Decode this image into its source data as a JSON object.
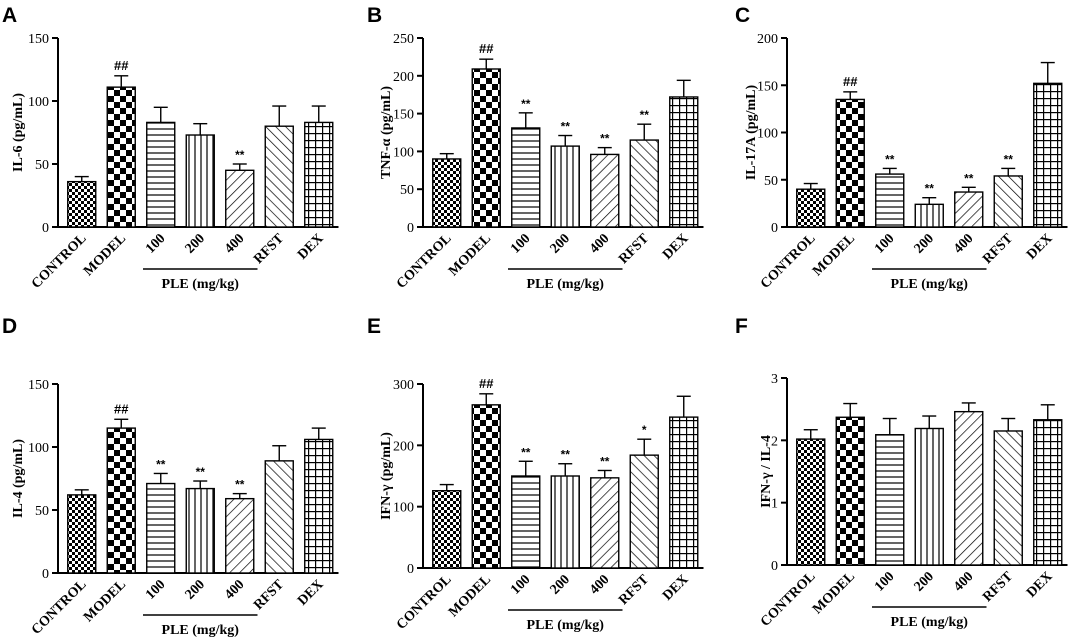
{
  "chart_data": [
    {
      "panel": "A",
      "type": "bar",
      "ylabel": "IL-6 (pg/mL)",
      "ylim": [
        0,
        150
      ],
      "yticks": [
        "0",
        "50",
        "100",
        "150"
      ],
      "categories": [
        "CONTROL",
        "MODEL",
        "100",
        "200",
        "400",
        "RFST",
        "DEX"
      ],
      "group_label": "PLE (mg/kg)",
      "values": [
        36,
        111,
        83,
        73,
        45,
        80,
        83
      ],
      "errors": [
        4,
        9,
        12,
        9,
        5,
        16,
        13
      ],
      "annotations": [
        "",
        "##",
        "",
        "",
        "**",
        "",
        ""
      ]
    },
    {
      "panel": "B",
      "type": "bar",
      "ylabel": "TNF-α (pg/mL)",
      "ylim": [
        0,
        250
      ],
      "yticks": [
        "0",
        "50",
        "100",
        "150",
        "200",
        "250"
      ],
      "categories": [
        "CONTROL",
        "MODEL",
        "100",
        "200",
        "400",
        "RFST",
        "DEX"
      ],
      "group_label": "PLE (mg/kg)",
      "values": [
        90,
        209,
        131,
        107,
        96,
        115,
        172
      ],
      "errors": [
        7,
        13,
        20,
        14,
        9,
        21,
        22
      ],
      "annotations": [
        "",
        "##",
        "**",
        "**",
        "**",
        "**",
        ""
      ]
    },
    {
      "panel": "C",
      "type": "bar",
      "ylabel": "IL-17A (pg/mL)",
      "ylim": [
        0,
        200
      ],
      "yticks": [
        "0",
        "50",
        "100",
        "150",
        "200"
      ],
      "categories": [
        "CONTROL",
        "MODEL",
        "100",
        "200",
        "400",
        "RFST",
        "DEX"
      ],
      "group_label": "PLE (mg/kg)",
      "values": [
        40,
        135,
        56,
        24,
        37,
        54,
        152
      ],
      "errors": [
        6,
        8,
        6,
        7,
        5,
        8,
        22
      ],
      "annotations": [
        "",
        "##",
        "**",
        "**",
        "**",
        "**",
        ""
      ]
    },
    {
      "panel": "D",
      "type": "bar",
      "ylabel": "IL-4 (pg/mL)",
      "ylim": [
        0,
        150
      ],
      "yticks": [
        "0",
        "50",
        "100",
        "150"
      ],
      "categories": [
        "CONTROL",
        "MODEL",
        "100",
        "200",
        "400",
        "RFST",
        "DEX"
      ],
      "group_label": "PLE (mg/kg)",
      "values": [
        62,
        115,
        71,
        67,
        59,
        89,
        106
      ],
      "errors": [
        4,
        7,
        8,
        6,
        4,
        12,
        9
      ],
      "annotations": [
        "",
        "##",
        "**",
        "**",
        "**",
        "",
        ""
      ]
    },
    {
      "panel": "E",
      "type": "bar",
      "ylabel": "IFN-γ (pg/mL)",
      "ylim": [
        0,
        300
      ],
      "yticks": [
        "0",
        "100",
        "200",
        "300"
      ],
      "categories": [
        "CONTROL",
        "MODEL",
        "100",
        "200",
        "400",
        "RFST",
        "DEX"
      ],
      "group_label": "PLE (mg/kg)",
      "values": [
        126,
        266,
        150,
        150,
        147,
        184,
        246
      ],
      "errors": [
        10,
        18,
        24,
        20,
        12,
        26,
        34
      ],
      "annotations": [
        "",
        "##",
        "**",
        "**",
        "**",
        "*",
        ""
      ]
    },
    {
      "panel": "F",
      "type": "bar",
      "ylabel": "IFN-γ / IL-4",
      "ylim": [
        0,
        3
      ],
      "yticks": [
        "0",
        "1",
        "2",
        "3"
      ],
      "categories": [
        "CONTROL",
        "MODEL",
        "100",
        "200",
        "400",
        "RFST",
        "DEX"
      ],
      "group_label": "PLE (mg/kg)",
      "values": [
        2.02,
        2.37,
        2.09,
        2.19,
        2.46,
        2.15,
        2.33
      ],
      "errors": [
        0.15,
        0.22,
        0.26,
        0.2,
        0.14,
        0.2,
        0.24
      ],
      "annotations": [
        "",
        "",
        "",
        "",
        "",
        "",
        ""
      ]
    }
  ]
}
